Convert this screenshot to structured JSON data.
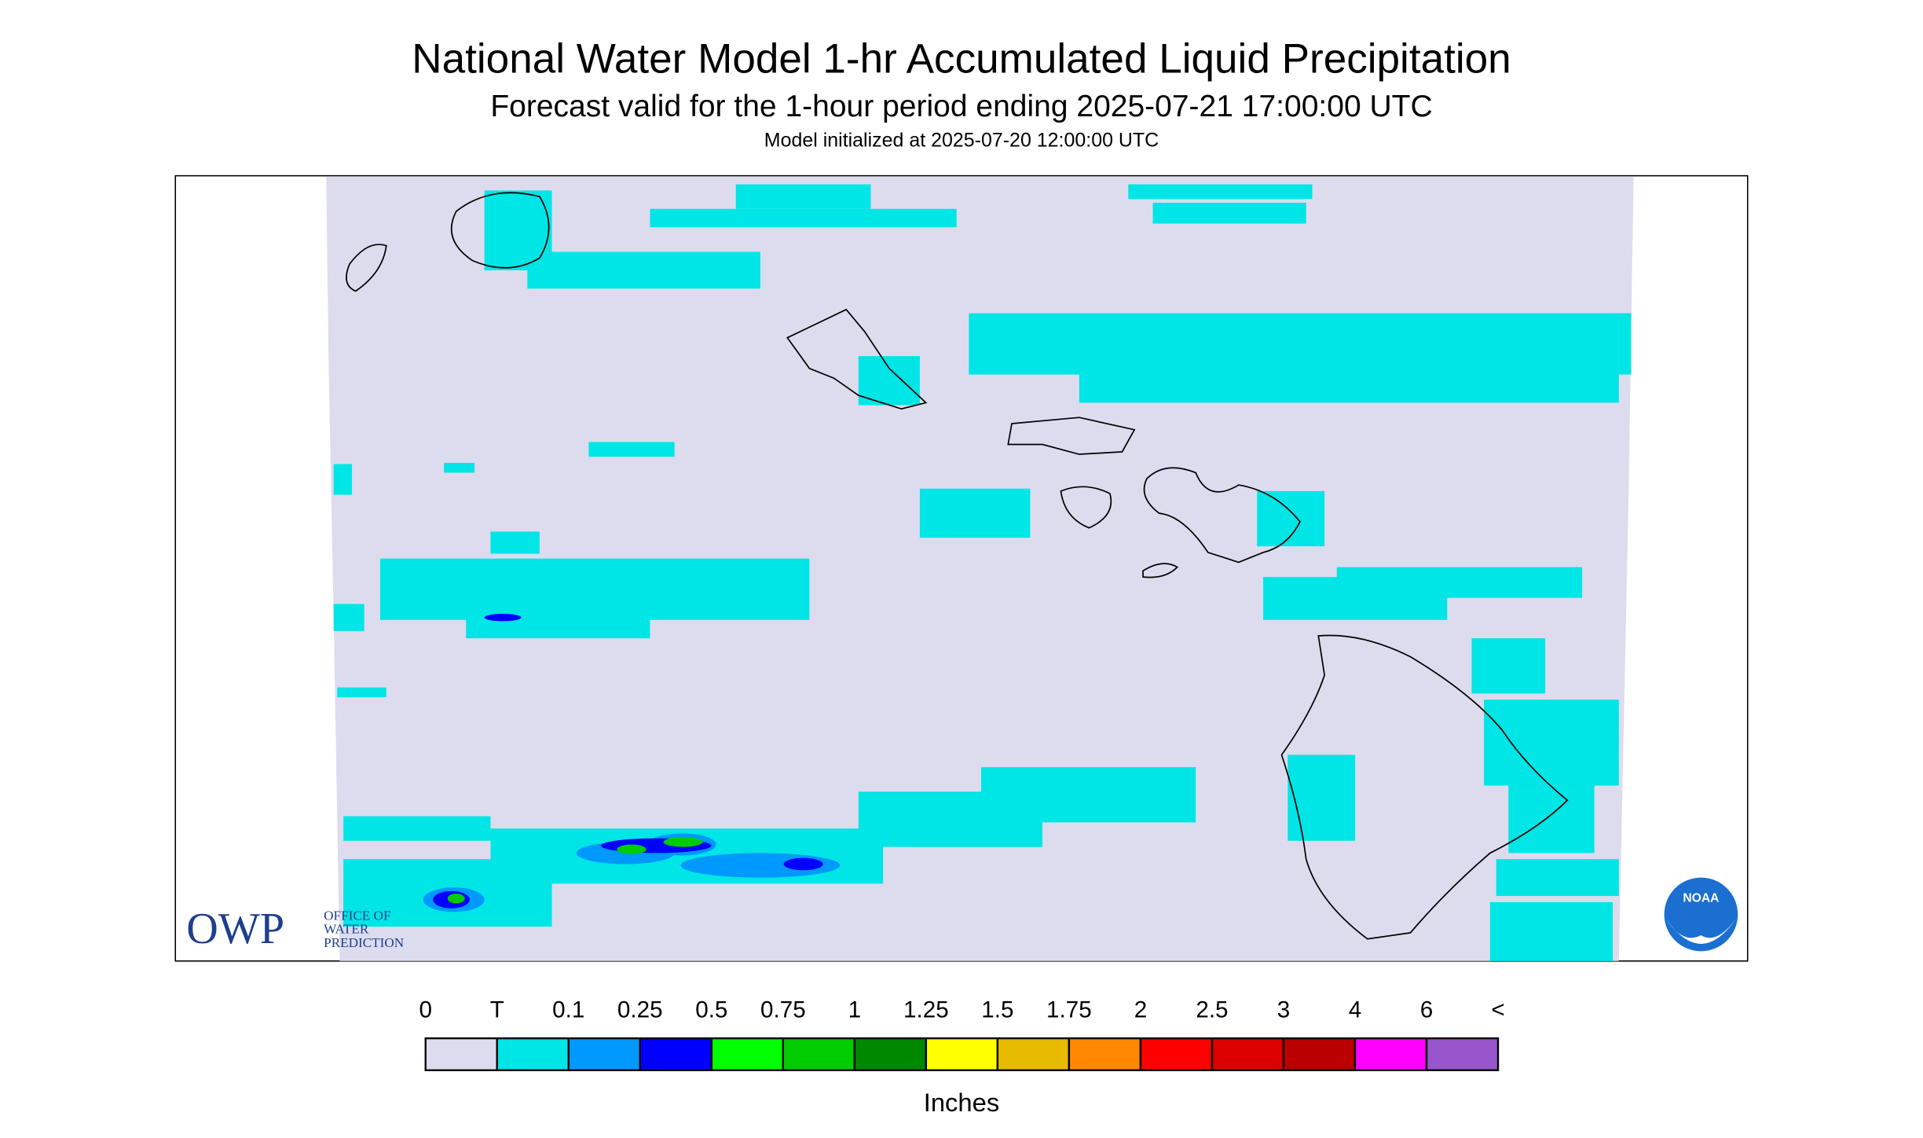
{
  "header": {
    "title": "National Water Model 1-hr Accumulated Liquid Precipitation",
    "subtitle": "Forecast valid for the 1-hour period ending 2025-07-21 17:00:00 UTC",
    "init": "Model initialized at 2025-07-20 12:00:00 UTC"
  },
  "legend": {
    "labels": [
      "0",
      "T",
      "0.1",
      "0.25",
      "0.5",
      "0.75",
      "1",
      "1.25",
      "1.5",
      "1.75",
      "2",
      "2.5",
      "3",
      "4",
      "6",
      "<"
    ],
    "colors": [
      "#dcdcee",
      "#00e5e5",
      "#0099ff",
      "#0000ff",
      "#00ff00",
      "#00cc00",
      "#008800",
      "#ffff00",
      "#e6bb00",
      "#ff8800",
      "#ff0000",
      "#dd0000",
      "#bb0000",
      "#ff00ff",
      "#9955cc"
    ],
    "unit": "Inches"
  },
  "logos": {
    "owp": "OWP",
    "owp_lines": [
      "OFFICE OF",
      "WATER",
      "PREDICTION"
    ],
    "noaa": "NOAA"
  }
}
